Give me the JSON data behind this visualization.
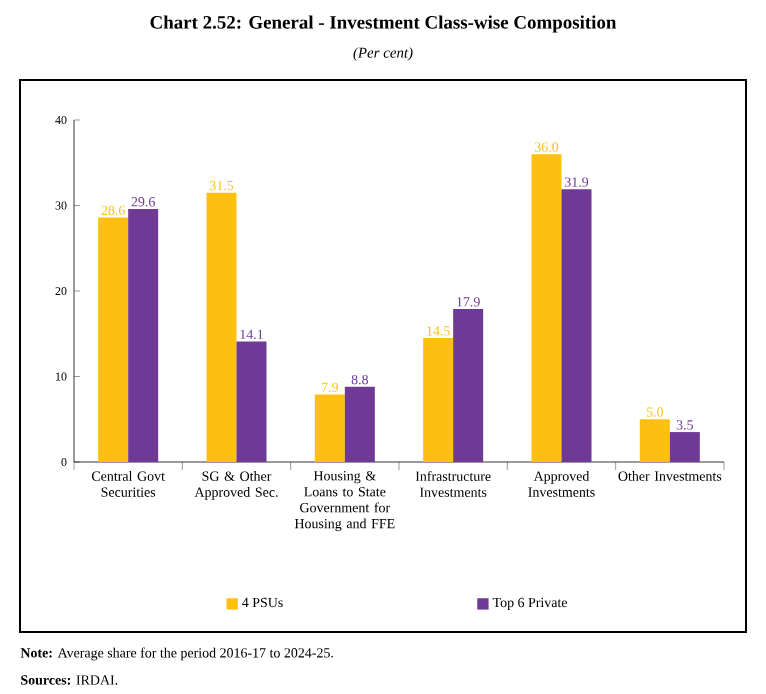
{
  "chart_data": {
    "type": "bar",
    "title": "Chart 2.52: General - Investment Class-wise Composition",
    "subtitle": "(Per cent)",
    "categories": [
      "Central Govt Securities",
      "SG & Other Approved Sec.",
      "Housing & Loans to State Government for Housing and FFE",
      "Infrastructure Investments",
      "Approved Investments",
      "Other Investments"
    ],
    "series": [
      {
        "name": "4 PSUs",
        "color": "#fdc010",
        "values": [
          28.6,
          31.5,
          7.9,
          14.5,
          36.0,
          5.0
        ],
        "value_labels": [
          "28.6",
          "31.5",
          "7.9",
          "14.5",
          "36.0",
          "5.0"
        ]
      },
      {
        "name": "Top 6 Private",
        "color": "#6f3a96",
        "values": [
          29.6,
          14.1,
          8.8,
          17.9,
          31.9,
          3.5
        ],
        "value_labels": [
          "29.6",
          "14.1",
          "8.8",
          "17.9",
          "31.9",
          "3.5"
        ]
      }
    ],
    "ylim": [
      0,
      40
    ],
    "yticks": [
      0,
      10,
      20,
      30,
      40
    ],
    "grid": false,
    "legend": "bottom",
    "annotations": [
      "**Note:** Average share for the period 2016-17 to 2024-25.",
      "**Sources:** IRDAI."
    ]
  }
}
